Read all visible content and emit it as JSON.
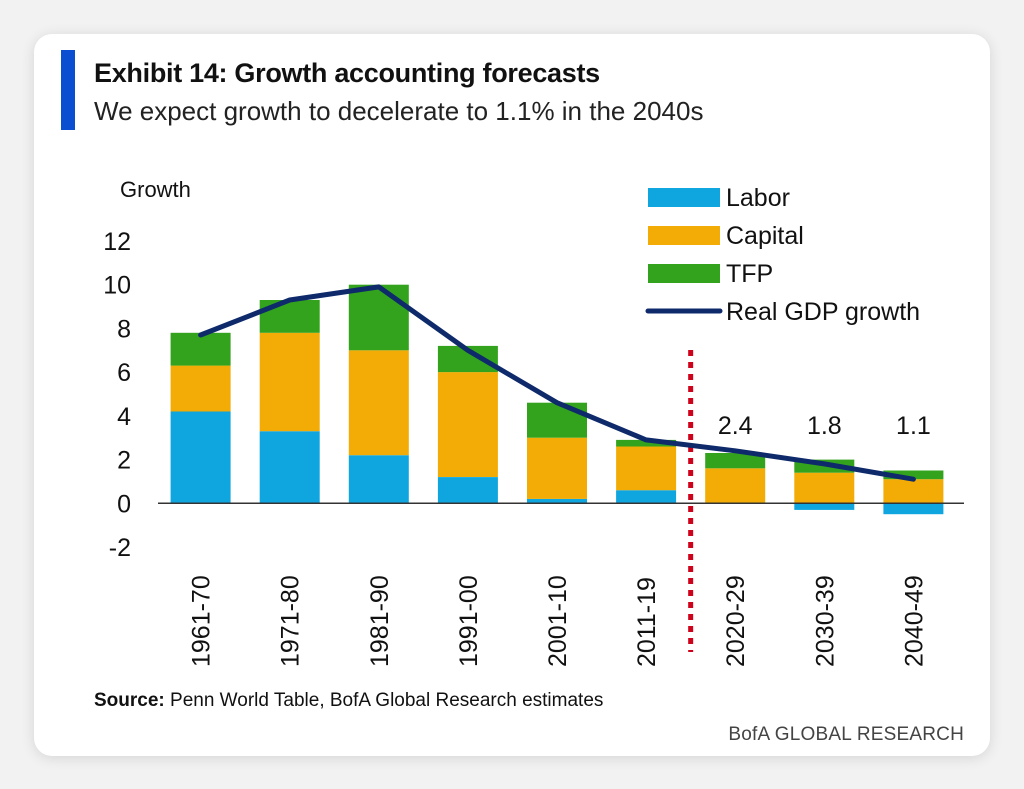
{
  "header": {
    "title": "Exhibit 14: Growth accounting forecasts",
    "subtitle": "We expect growth to decelerate to 1.1% in the 2040s"
  },
  "footer": {
    "source_label": "Source:",
    "source_text": "Penn World Table, BofA Global Research estimates",
    "brand": "BofA GLOBAL RESEARCH"
  },
  "colors": {
    "accent": "#0a4fd1",
    "labor": "#0fa6e0",
    "capital": "#f2ac05",
    "tfp": "#33a31d",
    "gdp_line": "#0e2a6b",
    "divider": "#d0021b"
  },
  "chart_data": {
    "type": "bar",
    "stacked": true,
    "title": "Exhibit 14: Growth accounting forecasts",
    "subtitle": "We expect growth to decelerate to 1.1% in the 2040s",
    "ylabel": "Growth",
    "xlabel": "",
    "ylim": [
      -2,
      12
    ],
    "yticks": [
      -2,
      0,
      2,
      4,
      6,
      8,
      10,
      12
    ],
    "categories": [
      "1961-70",
      "1971-80",
      "1981-90",
      "1991-00",
      "2001-10",
      "2011-19",
      "2020-29",
      "2030-39",
      "2040-49"
    ],
    "series": [
      {
        "name": "Labor",
        "type": "bar",
        "color": "#0fa6e0",
        "values": [
          4.2,
          3.3,
          2.2,
          1.2,
          0.2,
          0.6,
          0.0,
          -0.3,
          -0.5
        ]
      },
      {
        "name": "Capital",
        "type": "bar",
        "color": "#f2ac05",
        "values": [
          2.1,
          4.5,
          4.8,
          4.8,
          2.8,
          2.0,
          1.6,
          1.4,
          1.1
        ]
      },
      {
        "name": "TFP",
        "type": "bar",
        "color": "#33a31d",
        "values": [
          1.5,
          1.5,
          3.0,
          1.2,
          1.6,
          0.3,
          0.7,
          0.6,
          0.4
        ]
      },
      {
        "name": "Real GDP growth",
        "type": "line",
        "color": "#0e2a6b",
        "values": [
          7.7,
          9.3,
          9.9,
          7.0,
          4.6,
          2.9,
          2.4,
          1.8,
          1.1
        ]
      }
    ],
    "data_labels": [
      {
        "category": "2020-29",
        "text": "2.4"
      },
      {
        "category": "2030-39",
        "text": "1.8"
      },
      {
        "category": "2040-49",
        "text": "1.1"
      }
    ],
    "forecast_divider_after": "2011-19",
    "grid": false,
    "legend_position": "top-right"
  }
}
